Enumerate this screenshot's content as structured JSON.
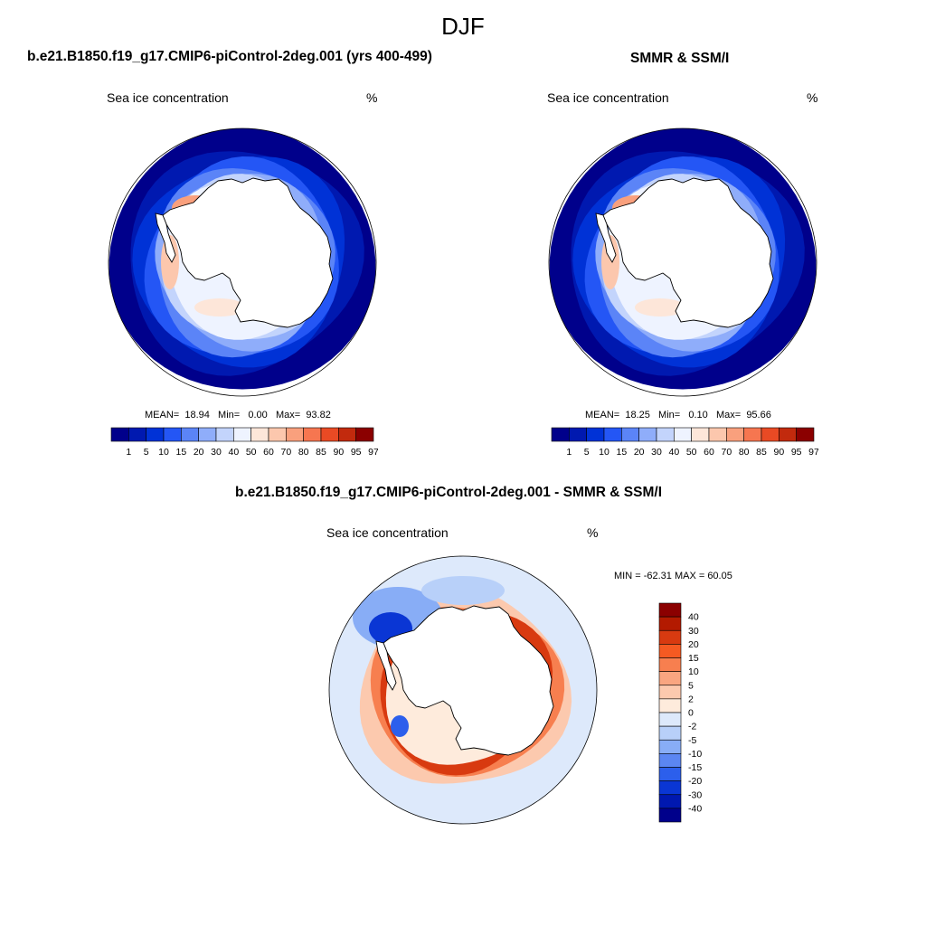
{
  "title": "DJF",
  "chart_data": [
    {
      "type": "heatmap",
      "title": "b.e21.B1850.f19_g17.CMIP6-piControl-2deg.001 (yrs 400-499)",
      "subtitle_left": "Sea ice concentration",
      "subtitle_right": "%",
      "projection": "south polar stereographic",
      "colorbar": {
        "levels": [
          "1",
          "5",
          "10",
          "15",
          "20",
          "30",
          "40",
          "50",
          "60",
          "70",
          "80",
          "85",
          "90",
          "95",
          "97"
        ],
        "colors": [
          "#00008b",
          "#0019b0",
          "#0032d6",
          "#2456f5",
          "#5b84f7",
          "#8fadfa",
          "#c3d4fc",
          "#eef3ff",
          "#fde6d9",
          "#fcc7ad",
          "#f9a07d",
          "#f67650",
          "#e94a24",
          "#c22a0d",
          "#8b0000"
        ],
        "orientation": "horizontal"
      },
      "stats": {
        "mean_label": "MEAN=",
        "mean": "18.94",
        "min_label": "Min=",
        "min": "0.00",
        "max_label": "Max=",
        "max": "93.82"
      }
    },
    {
      "type": "heatmap",
      "title": "SMMR & SSM/I",
      "subtitle_left": "Sea ice concentration",
      "subtitle_right": "%",
      "projection": "south polar stereographic",
      "colorbar": {
        "levels": [
          "1",
          "5",
          "10",
          "15",
          "20",
          "30",
          "40",
          "50",
          "60",
          "70",
          "80",
          "85",
          "90",
          "95",
          "97"
        ],
        "colors": [
          "#00008b",
          "#0019b0",
          "#0032d6",
          "#2456f5",
          "#5b84f7",
          "#8fadfa",
          "#c3d4fc",
          "#eef3ff",
          "#fde6d9",
          "#fcc7ad",
          "#f9a07d",
          "#f67650",
          "#e94a24",
          "#c22a0d",
          "#8b0000"
        ],
        "orientation": "horizontal"
      },
      "stats": {
        "mean_label": "MEAN=",
        "mean": "18.25",
        "min_label": "Min=",
        "min": "0.10",
        "max_label": "Max=",
        "max": "95.66"
      }
    },
    {
      "type": "heatmap",
      "title": "b.e21.B1850.f19_g17.CMIP6-piControl-2deg.001 - SMMR & SSM/I",
      "subtitle_left": "Sea ice concentration",
      "subtitle_right": "%",
      "projection": "south polar stereographic",
      "stats_text": "MIN = -62.31 MAX =  60.05",
      "colorbar": {
        "levels": [
          "40",
          "30",
          "20",
          "15",
          "10",
          "5",
          "2",
          "0",
          "-2",
          "-5",
          "-10",
          "-15",
          "-20",
          "-30",
          "-40"
        ],
        "colors": [
          "#8b0000",
          "#b31a00",
          "#d83a10",
          "#f55a22",
          "#f77f4f",
          "#f9a580",
          "#fcc9ae",
          "#feebdc",
          "#dde9fb",
          "#b8d0f9",
          "#88adf6",
          "#5b86f2",
          "#2c5fec",
          "#0a36d4",
          "#0018b0",
          "#00008b"
        ],
        "orientation": "vertical"
      }
    }
  ]
}
